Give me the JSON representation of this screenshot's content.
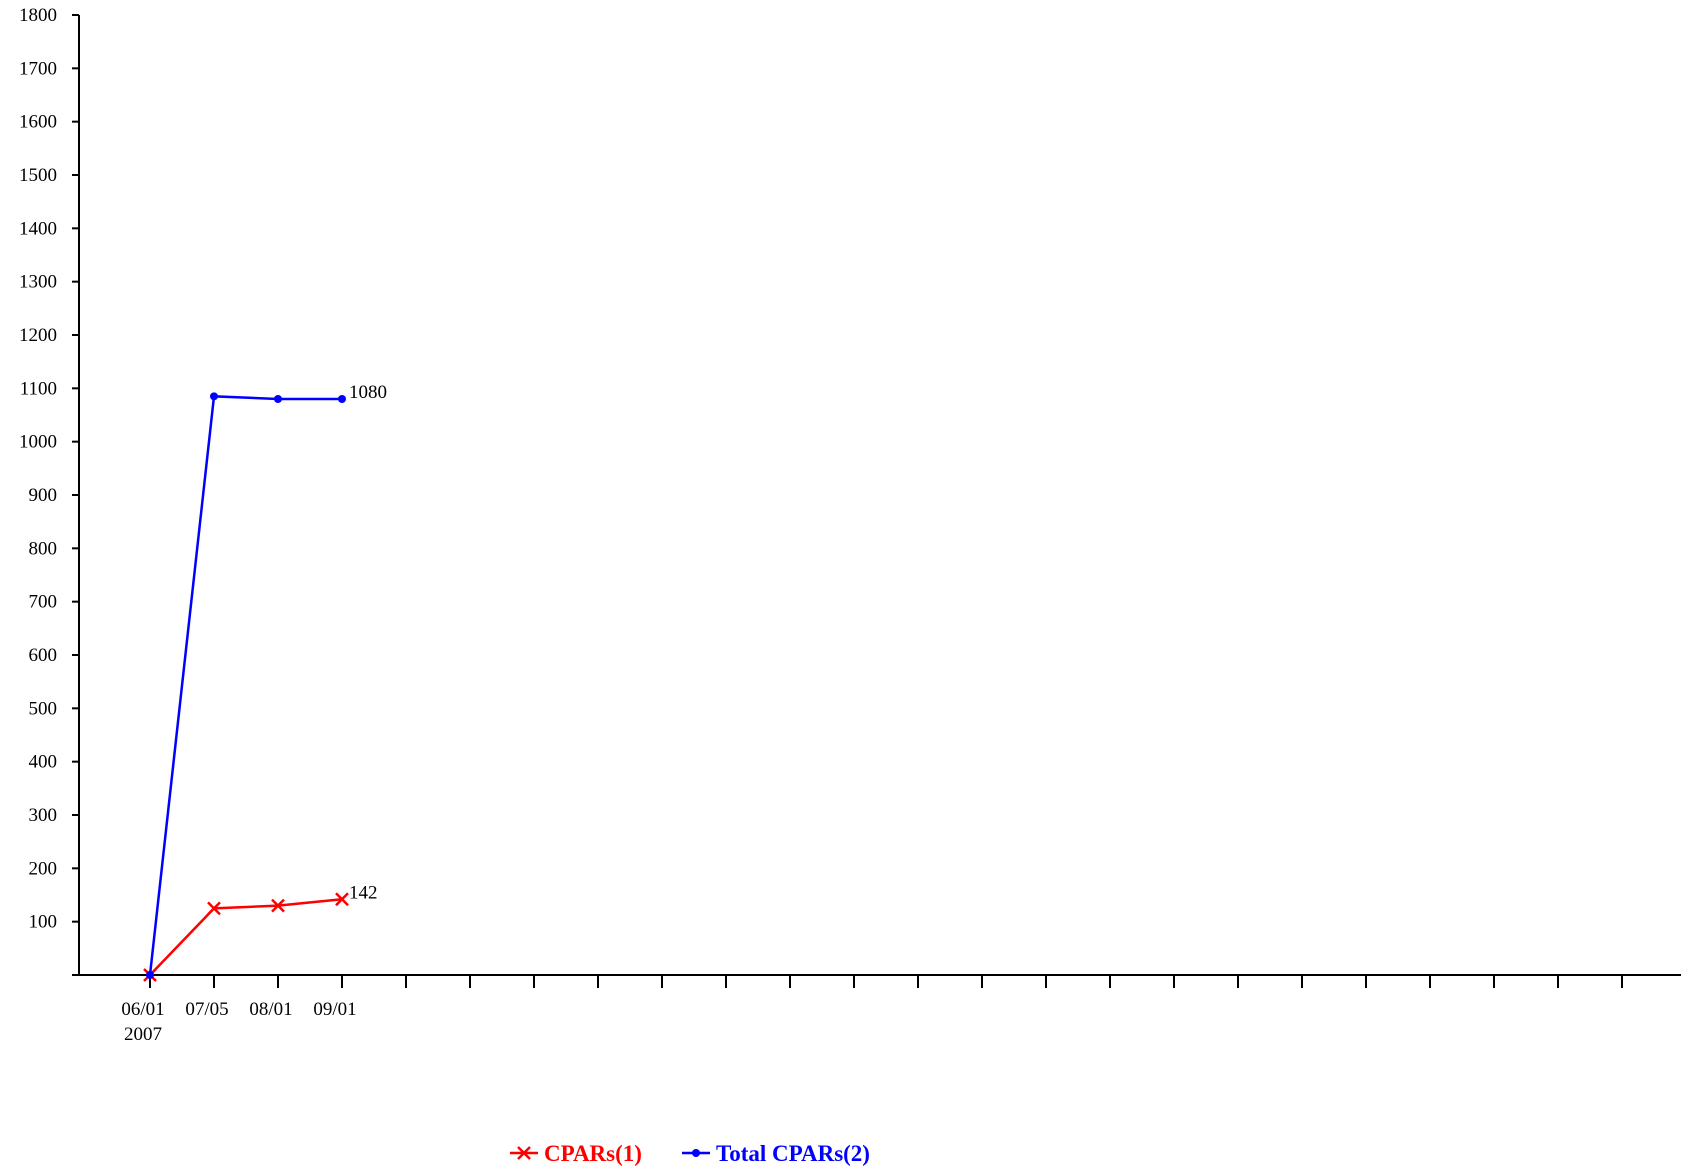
{
  "chart_data": {
    "type": "line",
    "categories": [
      "06/01",
      "07/05",
      "08/01",
      "09/01"
    ],
    "x_sublabels": [
      "2007",
      "",
      "",
      ""
    ],
    "x_slots": 24,
    "ylim": [
      0,
      1800
    ],
    "yticks": [
      100,
      200,
      300,
      400,
      500,
      600,
      700,
      800,
      900,
      1000,
      1100,
      1200,
      1300,
      1400,
      1500,
      1600,
      1700,
      1800
    ],
    "grid": false,
    "legend_position": "bottom-center",
    "series": [
      {
        "name": "CPARs(1)",
        "color": "#ff0000",
        "marker": "x-mark",
        "values": [
          0,
          125,
          130,
          142
        ],
        "end_label": "142"
      },
      {
        "name": "Total CPARs(2)",
        "color": "#0000ff",
        "marker": "dot",
        "values": [
          0,
          1085,
          1080,
          1080
        ],
        "end_label": "1080"
      }
    ]
  }
}
